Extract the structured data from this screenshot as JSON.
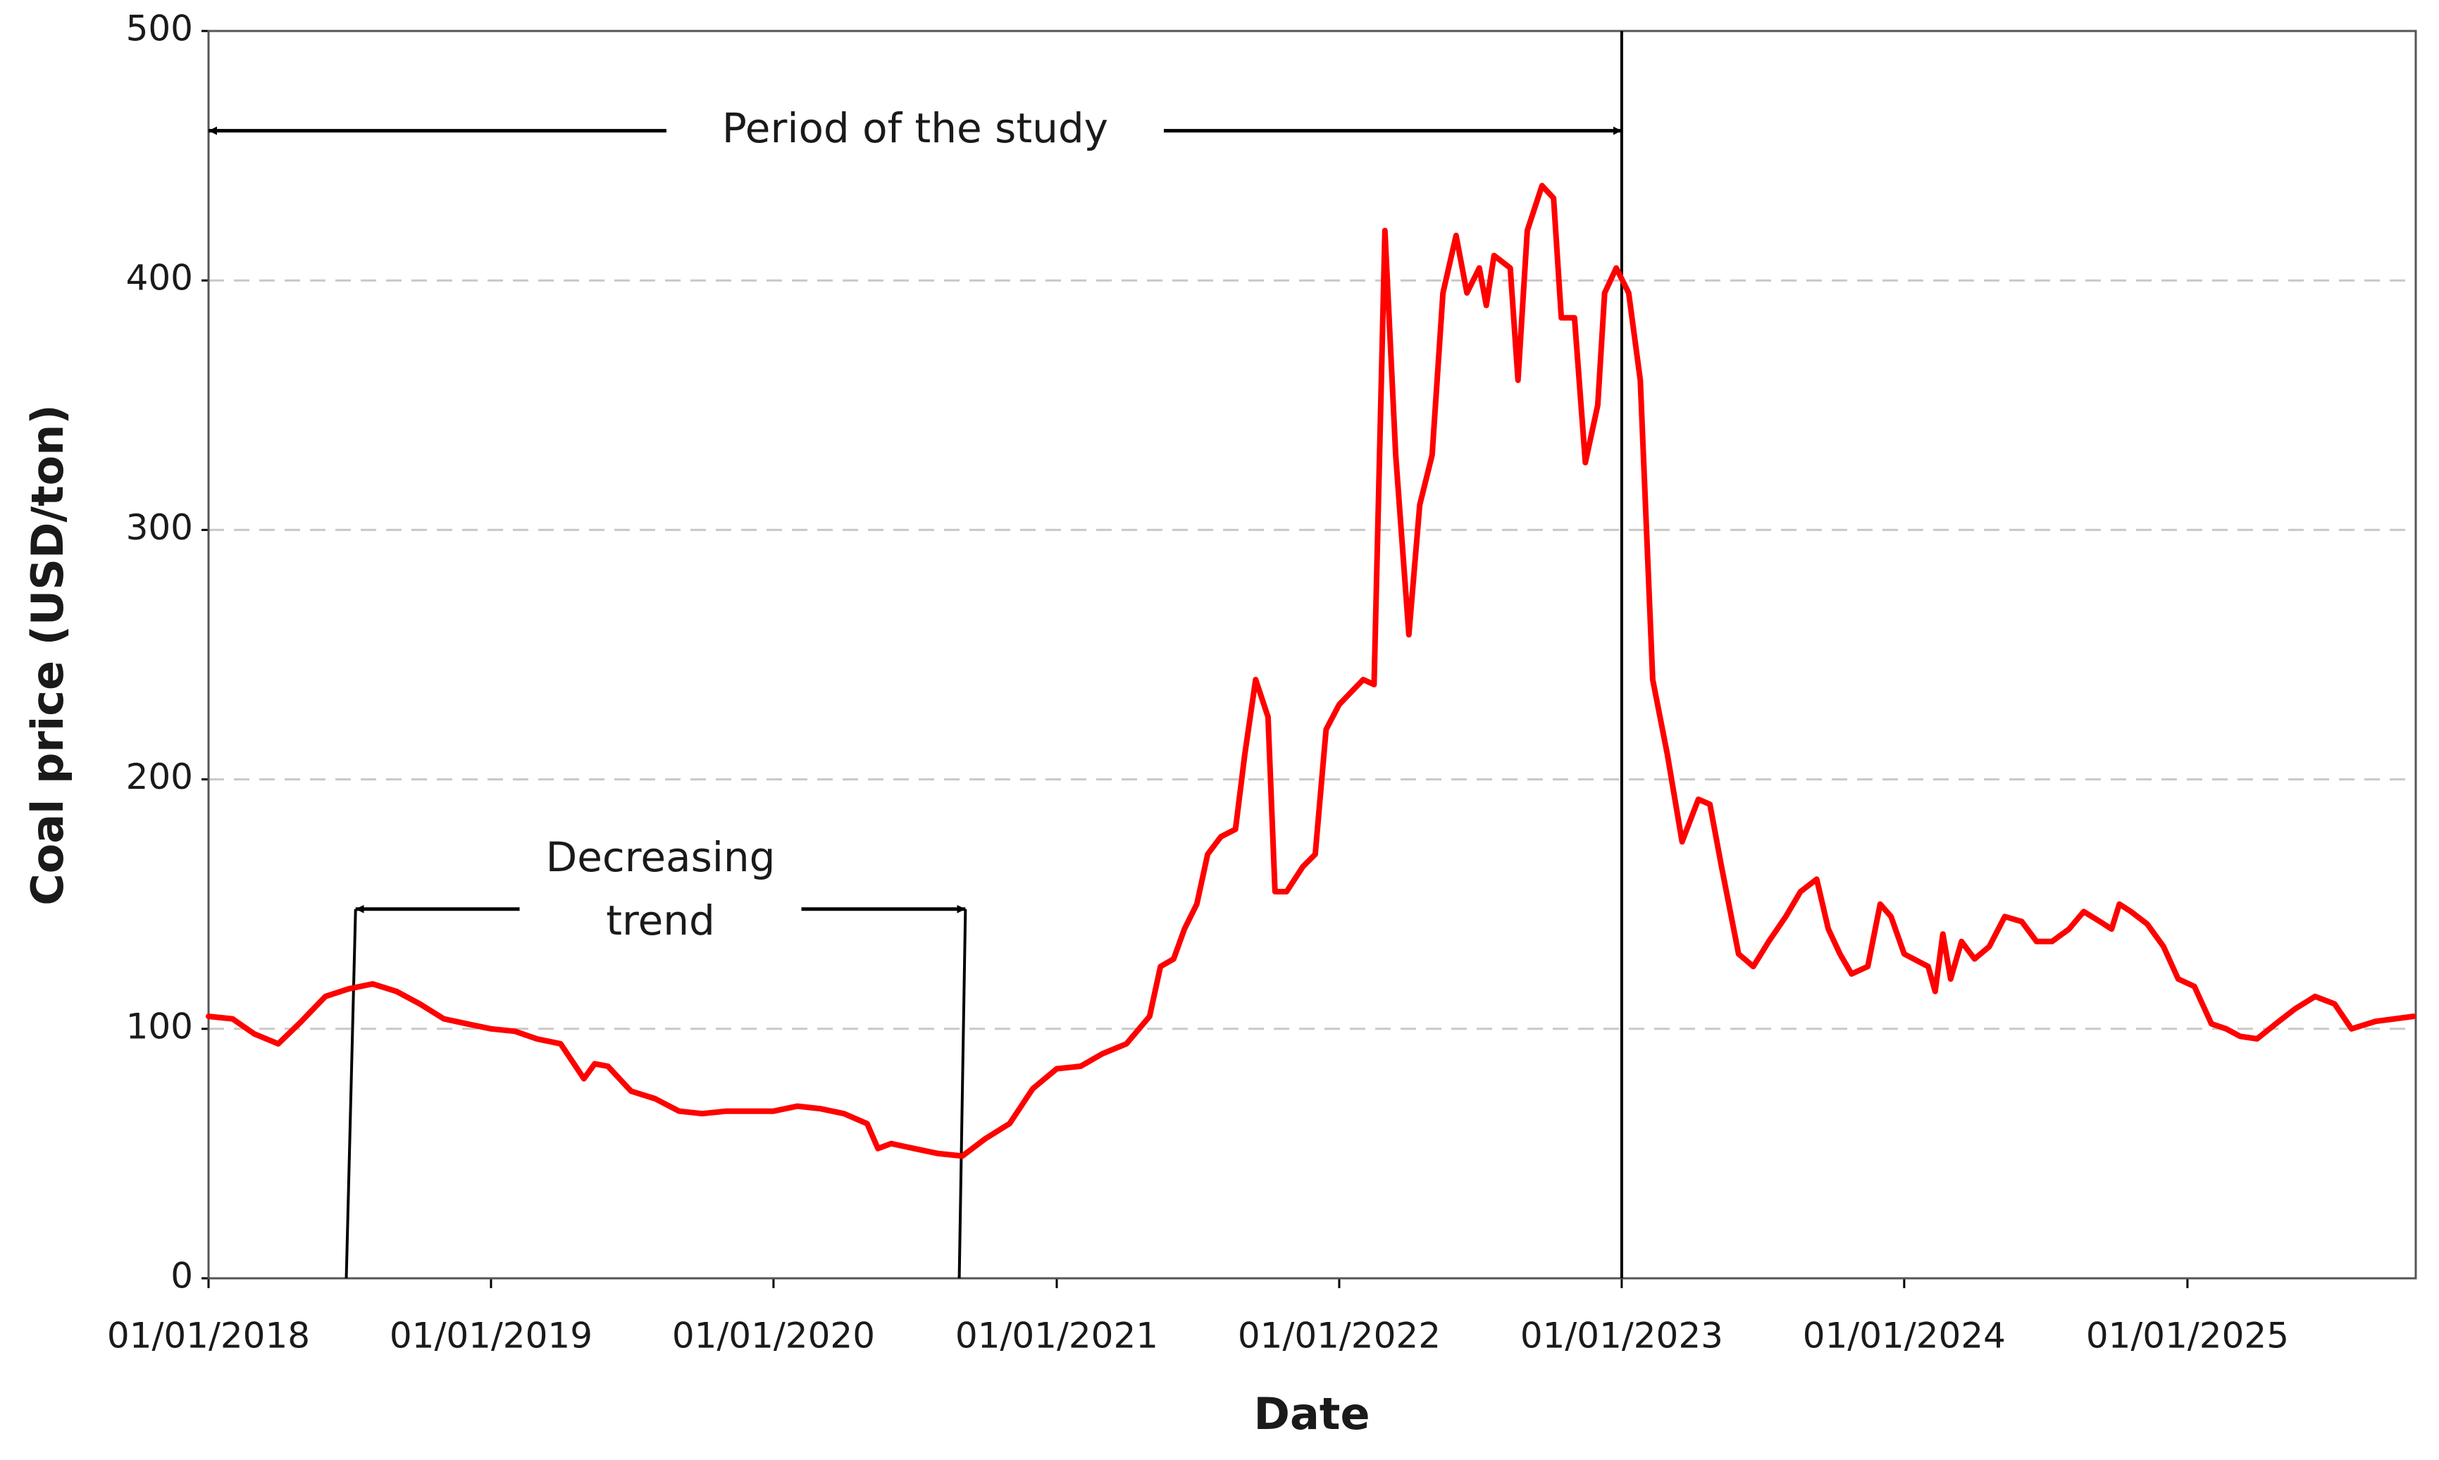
{
  "chart_data": {
    "type": "line",
    "x_label": "Date",
    "y_label": "Coal price (USD/ton)",
    "x": [
      "2018-01-01",
      "2018-02-01",
      "2018-03-01",
      "2018-04-01",
      "2018-05-01",
      "2018-06-01",
      "2018-07-01",
      "2018-08-01",
      "2018-09-01",
      "2018-10-01",
      "2018-11-01",
      "2018-12-01",
      "2019-01-01",
      "2019-02-01",
      "2019-03-01",
      "2019-04-01",
      "2019-05-01",
      "2019-05-15",
      "2019-06-01",
      "2019-07-01",
      "2019-08-01",
      "2019-09-01",
      "2019-10-01",
      "2019-11-01",
      "2019-12-01",
      "2020-01-01",
      "2020-02-01",
      "2020-03-01",
      "2020-04-01",
      "2020-05-01",
      "2020-05-15",
      "2020-06-01",
      "2020-07-01",
      "2020-08-01",
      "2020-09-01",
      "2020-10-01",
      "2020-11-01",
      "2020-12-01",
      "2021-01-01",
      "2021-02-01",
      "2021-03-01",
      "2021-04-01",
      "2021-05-01",
      "2021-05-15",
      "2021-06-01",
      "2021-06-15",
      "2021-07-01",
      "2021-07-15",
      "2021-08-01",
      "2021-08-20",
      "2021-09-01",
      "2021-09-15",
      "2021-10-01",
      "2021-10-10",
      "2021-10-25",
      "2021-11-15",
      "2021-12-01",
      "2021-12-15",
      "2022-01-01",
      "2022-02-01",
      "2022-02-15",
      "2022-03-01",
      "2022-03-15",
      "2022-04-01",
      "2022-04-15",
      "2022-05-01",
      "2022-05-15",
      "2022-06-01",
      "2022-06-15",
      "2022-07-01",
      "2022-07-10",
      "2022-07-20",
      "2022-08-10",
      "2022-08-20",
      "2022-09-01",
      "2022-09-20",
      "2022-10-05",
      "2022-10-15",
      "2022-11-01",
      "2022-11-15",
      "2022-12-01",
      "2022-12-10",
      "2022-12-25",
      "2023-01-10",
      "2023-01-25",
      "2023-02-10",
      "2023-03-01",
      "2023-03-20",
      "2023-04-10",
      "2023-04-25",
      "2023-05-10",
      "2023-06-01",
      "2023-06-20",
      "2023-07-10",
      "2023-08-01",
      "2023-08-20",
      "2023-09-10",
      "2023-09-25",
      "2023-10-10",
      "2023-10-25",
      "2023-11-15",
      "2023-12-01",
      "2023-12-15",
      "2024-01-01",
      "2024-02-01",
      "2024-02-10",
      "2024-02-20",
      "2024-03-01",
      "2024-03-15",
      "2024-04-01",
      "2024-04-20",
      "2024-05-10",
      "2024-06-01",
      "2024-06-20",
      "2024-07-10",
      "2024-08-01",
      "2024-08-20",
      "2024-09-10",
      "2024-09-25",
      "2024-10-05",
      "2024-10-20",
      "2024-11-10",
      "2024-12-01",
      "2024-12-20",
      "2025-01-10",
      "2025-02-01",
      "2025-02-20",
      "2025-03-10",
      "2025-04-01",
      "2025-04-25",
      "2025-05-20",
      "2025-06-15",
      "2025-07-10",
      "2025-08-01",
      "2025-09-01",
      "2025-10-20"
    ],
    "series": [
      {
        "color": "#ff0000",
        "values": [
          105,
          104,
          98,
          94,
          103,
          113,
          116,
          118,
          115,
          110,
          104,
          102,
          100,
          99,
          96,
          94,
          80,
          86,
          85,
          75,
          72,
          67,
          66,
          67,
          67,
          67,
          69,
          68,
          66,
          62,
          52,
          54,
          52,
          50,
          49,
          56,
          62,
          76,
          84,
          85,
          90,
          94,
          105,
          125,
          128,
          140,
          150,
          170,
          177,
          180,
          210,
          240,
          225,
          155,
          155,
          165,
          170,
          220,
          230,
          240,
          238,
          420,
          330,
          258,
          310,
          330,
          395,
          418,
          395,
          405,
          390,
          410,
          405,
          360,
          420,
          438,
          433,
          385,
          385,
          327,
          350,
          395,
          405,
          395,
          360,
          240,
          210,
          175,
          192,
          190,
          165,
          130,
          125,
          135,
          145,
          155,
          160,
          140,
          130,
          122,
          125,
          150,
          145,
          130,
          125,
          115,
          138,
          120,
          135,
          128,
          133,
          145,
          143,
          135,
          135,
          140,
          147,
          143,
          140,
          150,
          147,
          142,
          133,
          120,
          117,
          102,
          100,
          97,
          96,
          102,
          108,
          113,
          110,
          100,
          103,
          105
        ]
      }
    ],
    "xlim": [
      "2018-01-01",
      "2025-10-23"
    ],
    "xticks": [
      {
        "value": "2018-01-01",
        "label": "01/01/2018"
      },
      {
        "value": "2019-01-01",
        "label": "01/01/2019"
      },
      {
        "value": "2020-01-01",
        "label": "01/01/2020"
      },
      {
        "value": "2021-01-01",
        "label": "01/01/2021"
      },
      {
        "value": "2022-01-01",
        "label": "01/01/2022"
      },
      {
        "value": "2023-01-01",
        "label": "01/01/2023"
      },
      {
        "value": "2024-01-01",
        "label": "01/01/2024"
      },
      {
        "value": "2025-01-01",
        "label": "01/01/2025"
      }
    ],
    "ylim": [
      0,
      500
    ],
    "yticks": [
      0,
      100,
      200,
      300,
      400,
      500
    ],
    "grid": true,
    "annotations": [
      {
        "lines": [
          "Period of the study"
        ],
        "x": [
          "2018-01-01",
          "2023-01-01"
        ],
        "y": 460,
        "vline": "2023-01-01"
      },
      {
        "lines": [
          "Decreasing",
          "trend"
        ],
        "x": [
          "2018-07-10",
          "2020-09-05"
        ],
        "y": 148,
        "base_x": [
          "2018-06-28",
          "2020-08-28"
        ]
      }
    ]
  }
}
